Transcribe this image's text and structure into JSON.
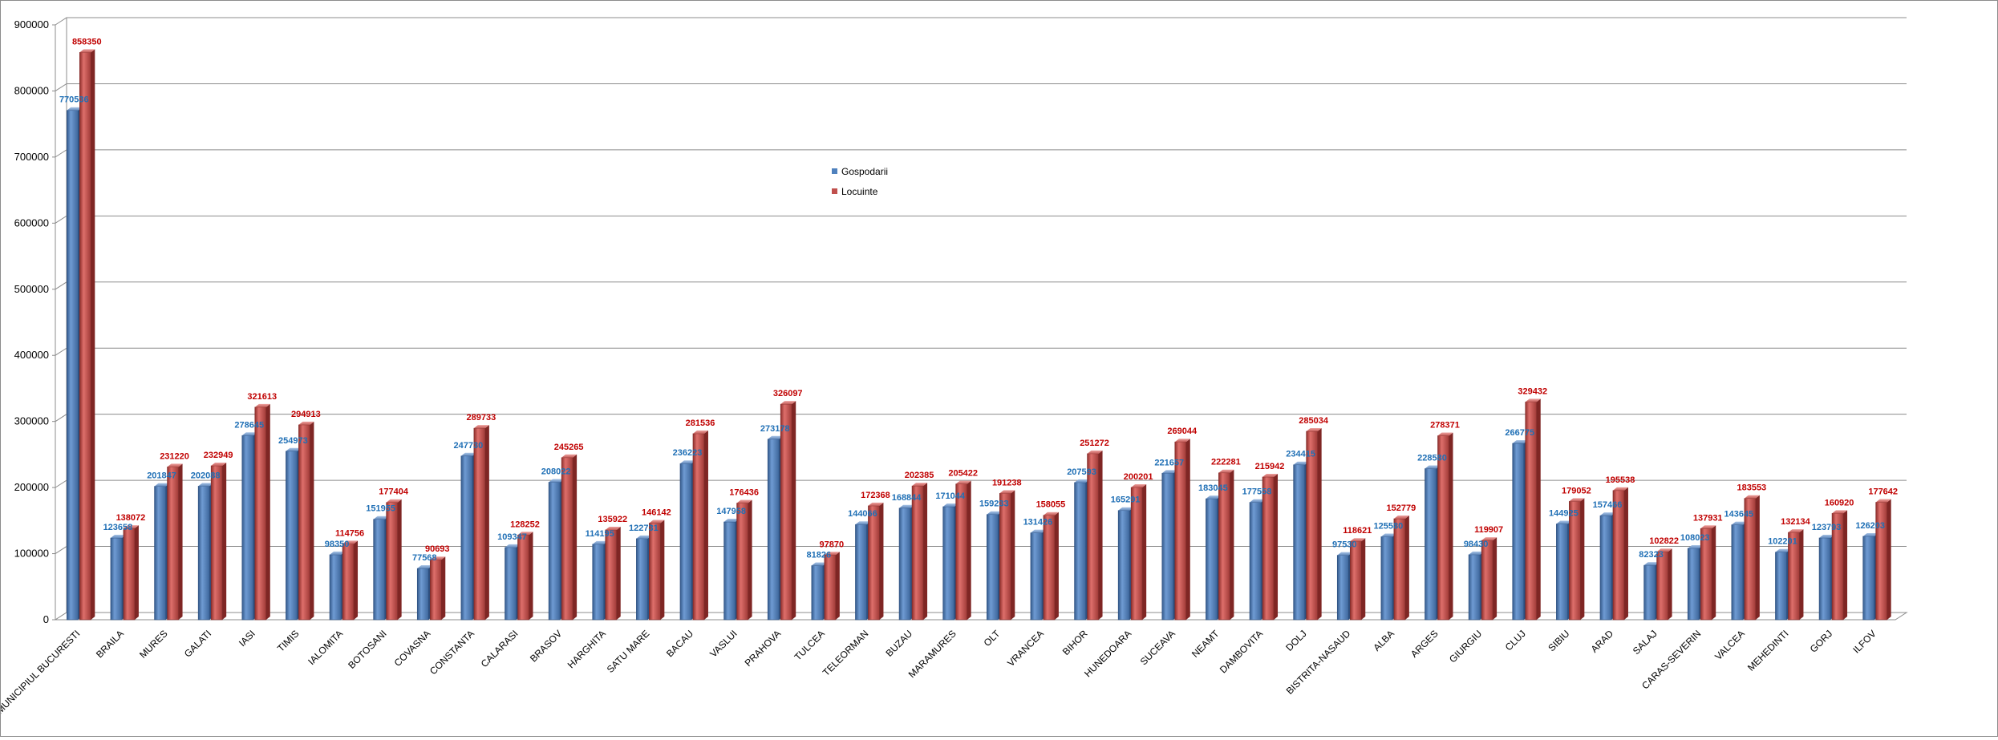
{
  "chart_data": {
    "type": "bar",
    "title": "",
    "xlabel": "",
    "ylabel": "",
    "ylim": [
      0,
      900000
    ],
    "y_ticks": [
      "0",
      "100000",
      "200000",
      "300000",
      "400000",
      "500000",
      "600000",
      "700000",
      "800000",
      "900000"
    ],
    "grid": true,
    "legend_position": "center-top",
    "categories": [
      "MUNICIPIUL BUCURESTI",
      "BRAILA",
      "MURES",
      "GALATI",
      "IASI",
      "TIMIS",
      "IALOMITA",
      "BOTOSANI",
      "COVASNA",
      "CONSTANTA",
      "CALARASI",
      "BRASOV",
      "HARGHITA",
      "SATU MARE",
      "BACAU",
      "VASLUI",
      "PRAHOVA",
      "TULCEA",
      "TELEORMAN",
      "BUZAU",
      "MARAMURES",
      "OLT",
      "VRANCEA",
      "BIHOR",
      "HUNEDOARA",
      "SUCEAVA",
      "NEAMT",
      "DAMBOVITA",
      "DOLJ",
      "BISTRITA-NASAUD",
      "ALBA",
      "ARGES",
      "GIURGIU",
      "CLUJ",
      "SIBIU",
      "ARAD",
      "SALAJ",
      "CARAS-SEVERIN",
      "VALCEA",
      "MEHEDINTI",
      "GORJ",
      "ILFOV"
    ],
    "series": [
      {
        "name": "Gospodarii",
        "color": "#4f81bd",
        "label_color": "#1f6fb5",
        "values": [
          770536,
          123658,
          201847,
          202088,
          278645,
          254973,
          98350,
          151955,
          77568,
          247730,
          109347,
          208022,
          114195,
          122731,
          236223,
          147958,
          273178,
          81826,
          144066,
          168844,
          171044,
          159233,
          131426,
          207593,
          165291,
          221657,
          183045,
          177558,
          234415,
          97530,
          125580,
          228580,
          98430,
          266775,
          144925,
          157466,
          82323,
          108023,
          143645,
          102201,
          123793,
          126203
        ],
        "labels": [
          "770536",
          "123658",
          "201847",
          "202088",
          "278645",
          "254973",
          "98350",
          "151955",
          "77568",
          "247730",
          "109347",
          "208022",
          "114195",
          "122731",
          "236223",
          "147958",
          "273178",
          "81826",
          "144066",
          "168844",
          "171044",
          "159233",
          "131426",
          "207593",
          "165291",
          "221657",
          "183045",
          "177558",
          "234415",
          "97530",
          "125580",
          "228580",
          "98430",
          "266775",
          "144925",
          "157466",
          "82323",
          "108023",
          "143645",
          "102201",
          "123793",
          "126203"
        ]
      },
      {
        "name": "Locuinte",
        "color": "#c0504d",
        "label_color": "#c00000",
        "values": [
          858350,
          138072,
          231220,
          232949,
          321613,
          294913,
          114756,
          177404,
          90693,
          289733,
          128252,
          245265,
          135922,
          146142,
          281536,
          176436,
          326097,
          97870,
          172368,
          202385,
          205422,
          191238,
          158055,
          251272,
          200201,
          269044,
          222281,
          215942,
          285034,
          118621,
          152779,
          278371,
          119907,
          329432,
          179052,
          195538,
          102822,
          137931,
          183553,
          132134,
          160920,
          177642
        ],
        "labels": [
          "858350",
          "138072",
          "231220",
          "232949",
          "321613",
          "294913",
          "114756",
          "177404",
          "90693",
          "289733",
          "128252",
          "245265",
          "135922",
          "146142",
          "281536",
          "176436",
          "326097",
          "97870",
          "172368",
          "202385",
          "205422",
          "191238",
          "158055",
          "251272",
          "200201",
          "269044",
          "222281",
          "215942",
          "285034",
          "118621",
          "152779",
          "278371",
          "119907",
          "329432",
          "179052",
          "195538",
          "102822",
          "137931",
          "183553",
          "132134",
          "160920",
          "177642"
        ]
      }
    ]
  }
}
